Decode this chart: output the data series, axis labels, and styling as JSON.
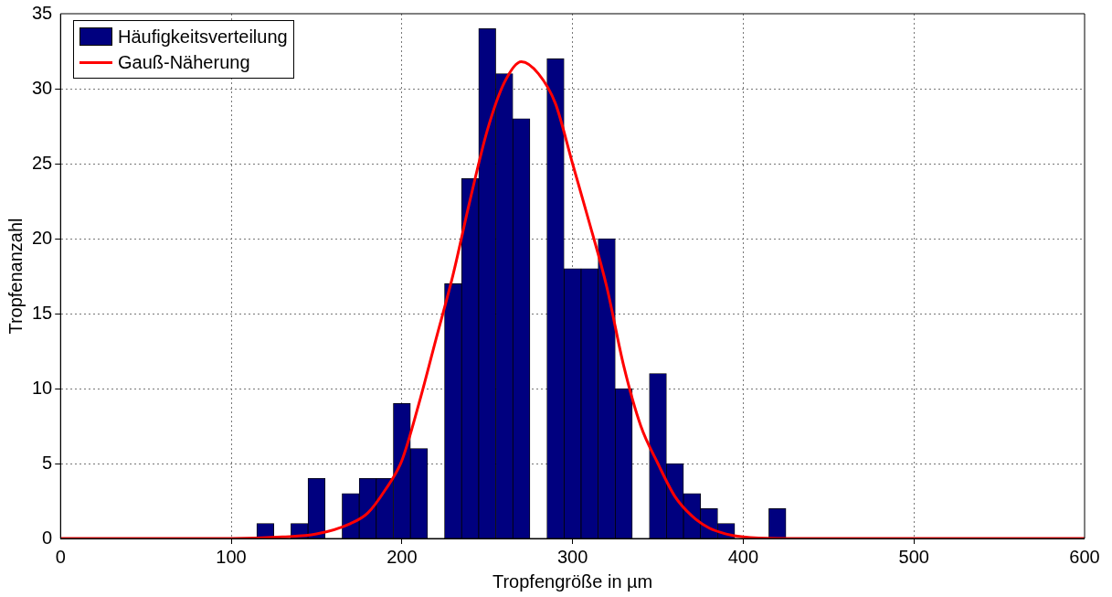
{
  "chart_data": {
    "type": "histogram",
    "xlabel": "Tropfengröße in µm",
    "ylabel": "Tropfenanzahl",
    "bins": [
      115,
      125,
      135,
      145,
      155,
      165,
      175,
      185,
      195,
      205,
      215,
      225,
      235,
      245,
      255,
      265,
      275,
      285,
      295,
      305,
      315,
      325,
      335,
      345,
      355,
      365,
      375,
      385,
      395,
      405,
      415,
      425
    ],
    "series": [
      {
        "name": "Häufigkeitsverteilung",
        "color": "#00007f",
        "values": [
          1,
          0,
          1,
          4,
          0,
          3,
          4,
          4,
          9,
          6,
          0,
          17,
          24,
          34,
          31,
          28,
          0,
          32,
          18,
          18,
          20,
          10,
          0,
          11,
          5,
          3,
          2,
          1,
          0,
          0,
          2
        ]
      },
      {
        "type": "line",
        "name": "Gauß-Näherung",
        "color": "#ff0000",
        "x": [
          0,
          100,
          130,
          150,
          170,
          180,
          190,
          200,
          210,
          220,
          230,
          240,
          250,
          260,
          270,
          280,
          290,
          300,
          310,
          320,
          330,
          340,
          350,
          360,
          370,
          380,
          390,
          400,
          420,
          450,
          600
        ],
        "values": [
          0,
          0,
          0.1,
          0.3,
          1,
          1.7,
          3.2,
          5.2,
          9,
          13.3,
          17.6,
          22.6,
          27.2,
          30.4,
          31.8,
          31,
          29,
          25,
          21,
          16.8,
          11.5,
          7.5,
          5,
          2.8,
          1.5,
          0.7,
          0.3,
          0.1,
          0,
          0,
          0
        ]
      }
    ],
    "xlim": [
      0,
      600
    ],
    "xticks": [
      0,
      100,
      200,
      300,
      400,
      500,
      600
    ],
    "ylim": [
      0,
      35
    ],
    "yticks": [
      0,
      5,
      10,
      15,
      20,
      25,
      30,
      35
    ],
    "grid": true,
    "legend": "top left"
  }
}
